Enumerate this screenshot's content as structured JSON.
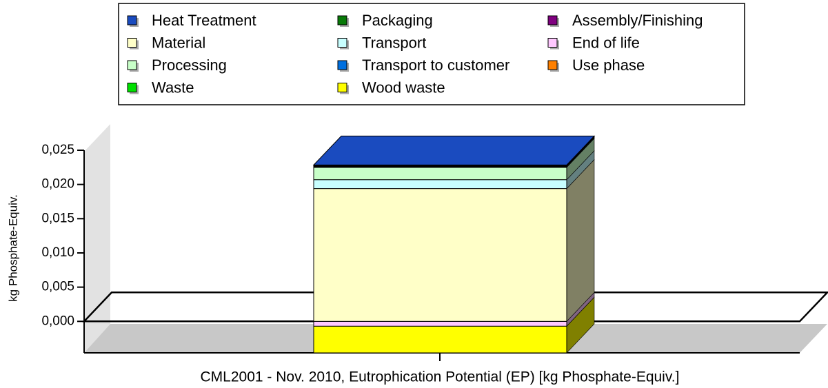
{
  "chart_data": {
    "type": "bar3d_stacked",
    "x_label": "CML2001 - Nov. 2010, Eutrophication Potential (EP) [kg Phosphate-Equiv.]",
    "y_label": "kg Phosphate-Equiv.",
    "categories": [
      "CML2001 - Nov. 2010, Eutrophication Potential (EP) [kg Phosphate-Equiv.]"
    ],
    "ylim": [
      -0.0046,
      0.025
    ],
    "yticks": [
      {
        "value": 0,
        "label": "0,000"
      },
      {
        "value": 0.005,
        "label": "0,005"
      },
      {
        "value": 0.01,
        "label": "0,010"
      },
      {
        "value": 0.015,
        "label": "0,015"
      },
      {
        "value": 0.02,
        "label": "0,020"
      },
      {
        "value": 0.025,
        "label": "0,025"
      }
    ],
    "series": [
      {
        "name": "Heat Treatment",
        "color": "#1a4bbf",
        "values": [
          5e-05
        ]
      },
      {
        "name": "Packaging",
        "color": "#087a08",
        "values": [
          0.0001
        ]
      },
      {
        "name": "Assembly/Finishing",
        "color": "#800080",
        "values": [
          0.0001
        ]
      },
      {
        "name": "Material",
        "color": "#ffffc8",
        "values": [
          0.0194
        ]
      },
      {
        "name": "Transport",
        "color": "#c8ffff",
        "values": [
          0.0013
        ]
      },
      {
        "name": "End of life",
        "color": "#ffc8ff",
        "values": [
          -0.0007
        ]
      },
      {
        "name": "Processing",
        "color": "#c8ffc8",
        "values": [
          0.0018
        ]
      },
      {
        "name": "Transport to customer",
        "color": "#0070e0",
        "values": [
          0.0001
        ]
      },
      {
        "name": "Use phase",
        "color": "#ff8000",
        "values": [
          0
        ]
      },
      {
        "name": "Waste",
        "color": "#00e000",
        "values": [
          0
        ]
      },
      {
        "name": "Wood waste",
        "color": "#ffff00",
        "values": [
          -0.0039
        ]
      }
    ]
  }
}
